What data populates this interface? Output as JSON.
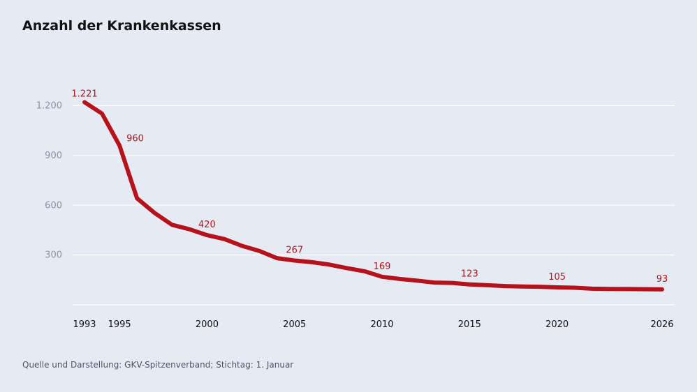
{
  "chart_data": {
    "type": "line",
    "title": "Anzahl der Krankenkassen",
    "source": "Quelle und Darstellung: GKV-Spitzenverband; Stichtag: 1. Januar",
    "xlabel": "",
    "ylabel": "",
    "x": [
      1993,
      1994,
      1995,
      1996,
      1997,
      1998,
      1999,
      2000,
      2001,
      2002,
      2003,
      2004,
      2005,
      2006,
      2007,
      2008,
      2009,
      2010,
      2011,
      2012,
      2013,
      2014,
      2015,
      2016,
      2017,
      2018,
      2019,
      2020,
      2021,
      2022,
      2023,
      2024,
      2025,
      2026
    ],
    "series": [
      {
        "values": [
          1221,
          1152,
          960,
          642,
          554,
          482,
          455,
          420,
          396,
          355,
          324,
          281,
          267,
          257,
          242,
          221,
          202,
          169,
          156,
          146,
          134,
          132,
          123,
          118,
          113,
          110,
          109,
          105,
          103,
          97,
          96,
          95,
          94,
          93
        ],
        "color": "#b5121b"
      }
    ],
    "ylim": [
      0,
      1300
    ],
    "yticks": [
      300,
      600,
      900,
      1200
    ],
    "ytick_labels": [
      "300",
      "600",
      "900",
      "1.200"
    ],
    "xticks": [
      1993,
      1995,
      2000,
      2005,
      2010,
      2015,
      2020,
      2026
    ],
    "xtick_labels": [
      "1993",
      "1995",
      "2000",
      "2005",
      "2010",
      "2015",
      "2020",
      "2026"
    ],
    "data_labels": [
      {
        "x": 1993,
        "text": "1.221"
      },
      {
        "x": 1995,
        "text": "960"
      },
      {
        "x": 2000,
        "text": "420"
      },
      {
        "x": 2005,
        "text": "267"
      },
      {
        "x": 2010,
        "text": "169"
      },
      {
        "x": 2015,
        "text": "123"
      },
      {
        "x": 2020,
        "text": "105"
      },
      {
        "x": 2026,
        "text": "93"
      }
    ],
    "grid": true,
    "background": "#e6eaf2"
  }
}
